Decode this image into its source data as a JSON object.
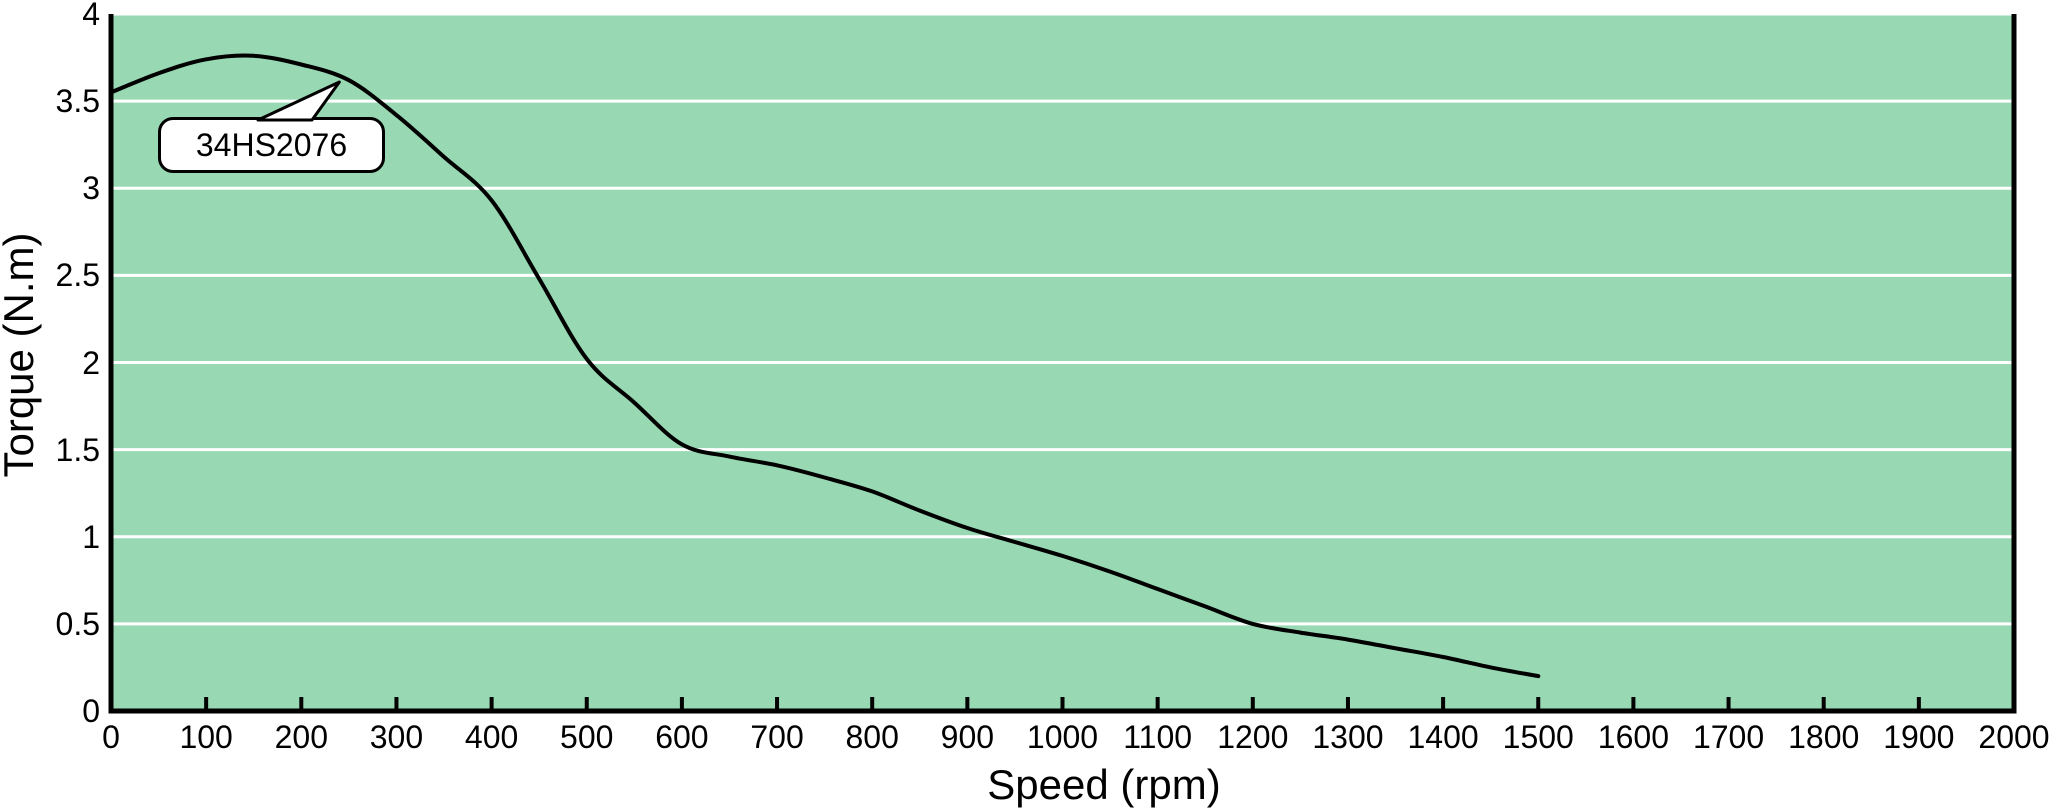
{
  "chart_data": {
    "type": "line",
    "title": "",
    "xlabel": "Speed (rpm)",
    "ylabel": "Torque (N.m)",
    "xlim": [
      0,
      2000
    ],
    "ylim": [
      0,
      4
    ],
    "x_ticks": [
      0,
      100,
      200,
      300,
      400,
      500,
      600,
      700,
      800,
      900,
      1000,
      1100,
      1200,
      1300,
      1400,
      1500,
      1600,
      1700,
      1800,
      1900,
      2000
    ],
    "y_ticks": [
      0,
      0.5,
      1,
      1.5,
      2,
      2.5,
      3,
      3.5,
      4
    ],
    "grid": {
      "horizontal": true,
      "vertical": false,
      "color": "#ffffff"
    },
    "legend": {
      "visible": false
    },
    "plot_background": "#98d9b4",
    "line_color": "#000000",
    "series": [
      {
        "name": "34HS2076",
        "x": [
          0,
          50,
          100,
          150,
          200,
          250,
          300,
          350,
          400,
          450,
          500,
          550,
          600,
          650,
          700,
          750,
          800,
          850,
          900,
          950,
          1000,
          1050,
          1100,
          1150,
          1200,
          1250,
          1300,
          1350,
          1400,
          1450,
          1500
        ],
        "y": [
          3.55,
          3.66,
          3.74,
          3.76,
          3.71,
          3.62,
          3.42,
          3.18,
          2.93,
          2.48,
          2.02,
          1.77,
          1.53,
          1.46,
          1.41,
          1.34,
          1.26,
          1.15,
          1.05,
          0.97,
          0.89,
          0.8,
          0.7,
          0.6,
          0.5,
          0.45,
          0.41,
          0.36,
          0.31,
          0.25,
          0.2
        ]
      }
    ],
    "annotation": {
      "label": "34HS2076",
      "arrow_tip_x": 240,
      "arrow_tip_y": 3.61
    }
  }
}
